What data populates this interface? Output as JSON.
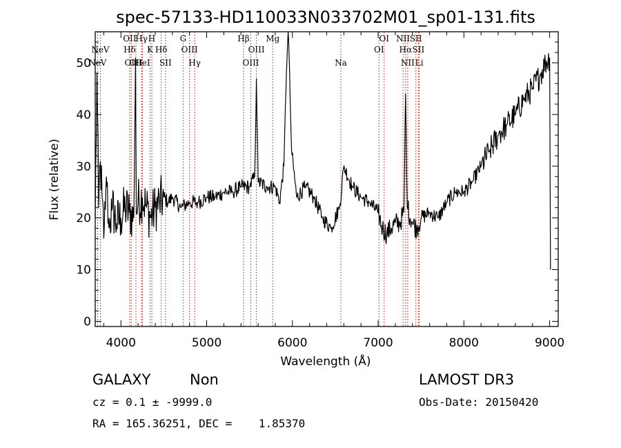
{
  "chart_data": {
    "type": "line",
    "title": "spec-57133-HD110033N033702M01_sp01-131.fits",
    "xlabel": "Wavelength (Å)",
    "ylabel": "Flux (relative)",
    "xlim": [
      3700,
      9100
    ],
    "ylim": [
      -1,
      56
    ],
    "xticks": [
      4000,
      5000,
      6000,
      7000,
      8000,
      9000
    ],
    "yticks": [
      0,
      10,
      20,
      30,
      40,
      50
    ],
    "spectrum_keypoints": [
      [
        3700,
        20
      ],
      [
        3720,
        48
      ],
      [
        3740,
        22
      ],
      [
        3760,
        31
      ],
      [
        3780,
        24
      ],
      [
        3800,
        16
      ],
      [
        3830,
        28
      ],
      [
        3860,
        18
      ],
      [
        3900,
        22
      ],
      [
        3950,
        19
      ],
      [
        4000,
        20
      ],
      [
        4050,
        22
      ],
      [
        4100,
        21
      ],
      [
        4150,
        20
      ],
      [
        4170,
        51
      ],
      [
        4180,
        21
      ],
      [
        4200,
        23
      ],
      [
        4250,
        24
      ],
      [
        4300,
        22
      ],
      [
        4350,
        20
      ],
      [
        4400,
        22
      ],
      [
        4450,
        23
      ],
      [
        4500,
        24
      ],
      [
        4550,
        23
      ],
      [
        4600,
        24
      ],
      [
        4700,
        22
      ],
      [
        4800,
        23
      ],
      [
        4900,
        23
      ],
      [
        5000,
        24
      ],
      [
        5100,
        24
      ],
      [
        5200,
        25
      ],
      [
        5300,
        25
      ],
      [
        5400,
        26
      ],
      [
        5500,
        26
      ],
      [
        5560,
        28
      ],
      [
        5580,
        47
      ],
      [
        5600,
        27
      ],
      [
        5700,
        26
      ],
      [
        5800,
        26
      ],
      [
        5850,
        23
      ],
      [
        5900,
        30
      ],
      [
        5930,
        48
      ],
      [
        5950,
        58
      ],
      [
        5990,
        33
      ],
      [
        6050,
        24
      ],
      [
        6150,
        26
      ],
      [
        6250,
        24
      ],
      [
        6350,
        20
      ],
      [
        6450,
        18
      ],
      [
        6550,
        22
      ],
      [
        6600,
        30
      ],
      [
        6700,
        26
      ],
      [
        6800,
        24
      ],
      [
        6900,
        23
      ],
      [
        7000,
        21
      ],
      [
        7050,
        18
      ],
      [
        7100,
        17
      ],
      [
        7150,
        18
      ],
      [
        7200,
        19
      ],
      [
        7250,
        19
      ],
      [
        7300,
        21
      ],
      [
        7320,
        44
      ],
      [
        7340,
        22
      ],
      [
        7400,
        19
      ],
      [
        7450,
        18
      ],
      [
        7500,
        20
      ],
      [
        7600,
        21
      ],
      [
        7700,
        20
      ],
      [
        7800,
        23
      ],
      [
        7900,
        25
      ],
      [
        8000,
        25
      ],
      [
        8100,
        27
      ],
      [
        8200,
        30
      ],
      [
        8300,
        33
      ],
      [
        8400,
        36
      ],
      [
        8500,
        38
      ],
      [
        8600,
        40
      ],
      [
        8700,
        43
      ],
      [
        8800,
        45
      ],
      [
        8900,
        48
      ],
      [
        8950,
        50
      ],
      [
        9000,
        51
      ],
      [
        9010,
        10
      ]
    ],
    "line_markers": [
      {
        "w": 3727,
        "label": "NeV",
        "row": 2
      },
      {
        "w": 3760,
        "label": "NeV",
        "row": 1
      },
      {
        "w": 4102,
        "label": "OII",
        "row": 0
      },
      {
        "w": 4102,
        "label": "Hδ",
        "row": 1
      },
      {
        "w": 4120,
        "label": "OII",
        "row": 2
      },
      {
        "w": 4175,
        "label": "OII",
        "row": 2
      },
      {
        "w": 4240,
        "label": "Hγ",
        "row": 0
      },
      {
        "w": 4250,
        "label": "HeI",
        "row": 2
      },
      {
        "w": 4340,
        "label": "K",
        "row": 1
      },
      {
        "w": 4360,
        "label": "H",
        "row": 0
      },
      {
        "w": 4470,
        "label": "Hδ",
        "row": 1
      },
      {
        "w": 4520,
        "label": "SII",
        "row": 2
      },
      {
        "w": 4725,
        "label": "G",
        "row": 0
      },
      {
        "w": 4800,
        "label": "OIII",
        "row": 1
      },
      {
        "w": 4860,
        "label": "Hγ",
        "row": 2
      },
      {
        "w": 5430,
        "label": "Hβ",
        "row": 0
      },
      {
        "w": 5515,
        "label": "OIII",
        "row": 2
      },
      {
        "w": 5580,
        "label": "OIII",
        "row": 1
      },
      {
        "w": 5770,
        "label": "Mg",
        "row": 0
      },
      {
        "w": 6565,
        "label": "Na",
        "row": 2
      },
      {
        "w": 7010,
        "label": "OI",
        "row": 1
      },
      {
        "w": 7070,
        "label": "OI",
        "row": 0
      },
      {
        "w": 7290,
        "label": "NII",
        "row": 0
      },
      {
        "w": 7320,
        "label": "Hα",
        "row": 1
      },
      {
        "w": 7345,
        "label": "NII",
        "row": 2
      },
      {
        "w": 7440,
        "label": "SII",
        "row": 0
      },
      {
        "w": 7470,
        "label": "SII",
        "row": 1
      },
      {
        "w": 7480,
        "label": "Li",
        "row": 2
      }
    ]
  },
  "info": {
    "object_class": "GALAXY",
    "subclass": "Non",
    "survey": "LAMOST DR3",
    "cz": "cz = 0.1 ± -9999.0",
    "obs_date": "Obs-Date: 20150420",
    "radec": "RA = 165.36251, DEC =    1.85370"
  }
}
